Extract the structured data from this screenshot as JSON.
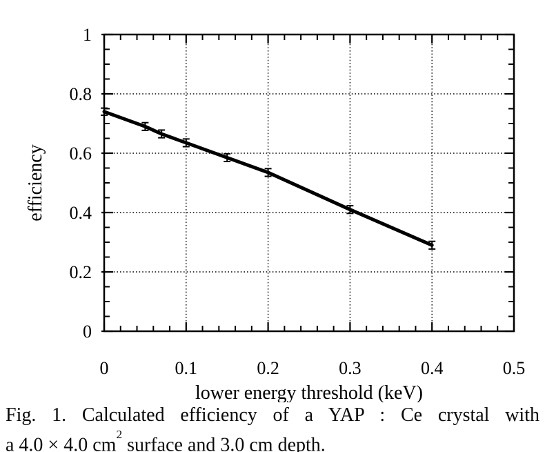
{
  "figure": {
    "caption": {
      "line1": "Fig. 1. Calculated efficiency of a YAP : Ce crystal with",
      "line2_pre": "a 4.0 × 4.0 cm",
      "line2_sup": "2",
      "line2_post": " surface and 3.0 cm depth."
    }
  },
  "chart_data": {
    "type": "line",
    "title": "",
    "xlabel": "lower energy threshold (keV)",
    "ylabel": "efficiency",
    "xlim": [
      0,
      0.5
    ],
    "ylim": [
      0,
      1
    ],
    "x_major_ticks": [
      0,
      0.1,
      0.2,
      0.3,
      0.4,
      0.5
    ],
    "x_tick_labels": [
      "0",
      "0.1",
      "0.2",
      "0.3",
      "0.4",
      "0.5"
    ],
    "y_major_ticks": [
      0,
      0.2,
      0.4,
      0.6,
      0.8,
      1
    ],
    "y_tick_labels": [
      "0",
      "0.2",
      "0.4",
      "0.6",
      "0.8",
      "1"
    ],
    "x_minor_step": 0.02,
    "y_minor_step": 0.05,
    "grid": "dotted-at-major-ticks",
    "legend": "none",
    "series": [
      {
        "name": "calculated efficiency",
        "x": [
          0,
          0.05,
          0.07,
          0.1,
          0.15,
          0.2,
          0.3,
          0.4
        ],
        "y": [
          0.74,
          0.69,
          0.665,
          0.635,
          0.585,
          0.535,
          0.41,
          0.29
        ],
        "yerr": [
          0.012,
          0.013,
          0.013,
          0.013,
          0.013,
          0.013,
          0.013,
          0.013
        ],
        "color": "#000000"
      }
    ]
  },
  "colors": {
    "ink": "#000000",
    "background": "#ffffff"
  }
}
